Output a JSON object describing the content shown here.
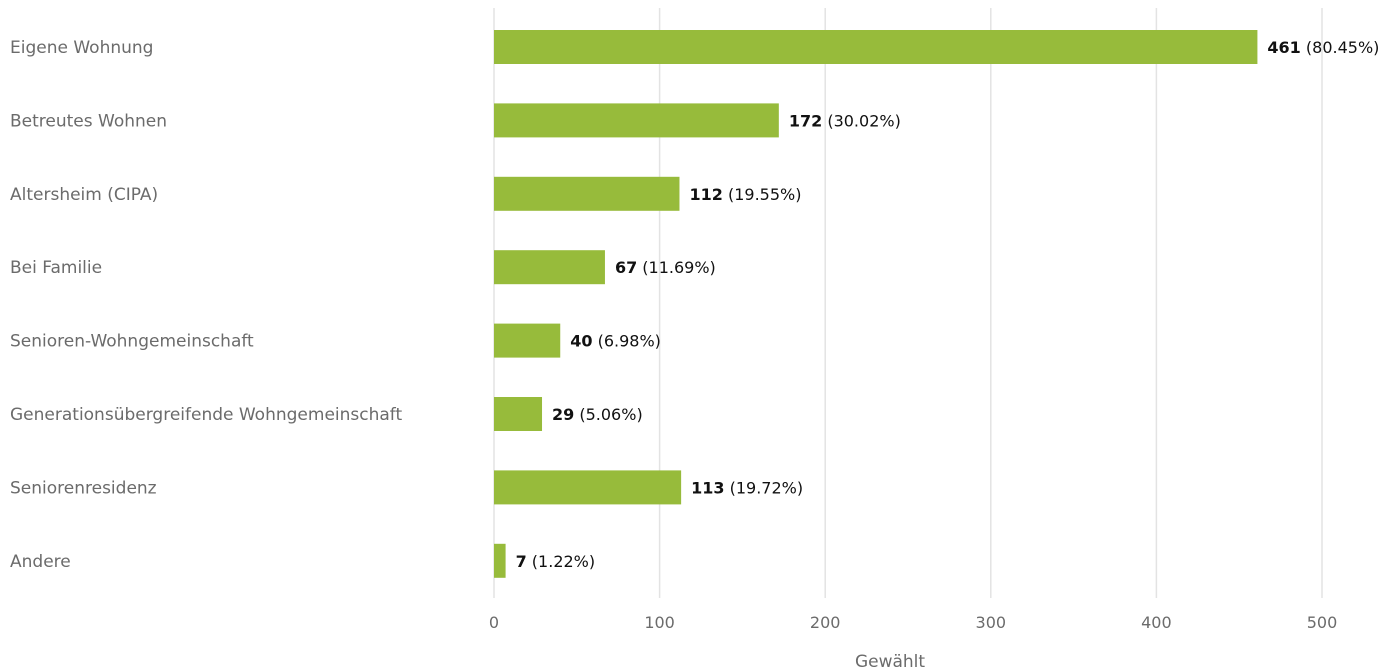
{
  "chart_data": {
    "type": "bar",
    "orientation": "horizontal",
    "categories": [
      "Eigene Wohnung",
      "Betreutes Wohnen",
      "Altersheim (CIPA)",
      "Bei Familie",
      "Senioren-Wohngemeinschaft",
      "Generationsübergreifende Wohngemeinschaft",
      "Seniorenresidenz",
      "Andere"
    ],
    "values": [
      461,
      172,
      112,
      67,
      40,
      29,
      113,
      7
    ],
    "percent_labels": [
      "(80.45%)",
      "(30.02%)",
      "(19.55%)",
      "(11.69%)",
      "(6.98%)",
      "(5.06%)",
      "(19.72%)",
      "(1.22%)"
    ],
    "xlabel": "Gewählt",
    "ylabel": "",
    "xlim": [
      0,
      500
    ],
    "xticks": [
      0,
      100,
      200,
      300,
      400,
      500
    ],
    "grid": true,
    "legend": "none",
    "bar_color": "#97bb3b",
    "grid_color": "#e3e3e3",
    "label_color": "#6b6b6b",
    "value_color": "#111111"
  }
}
